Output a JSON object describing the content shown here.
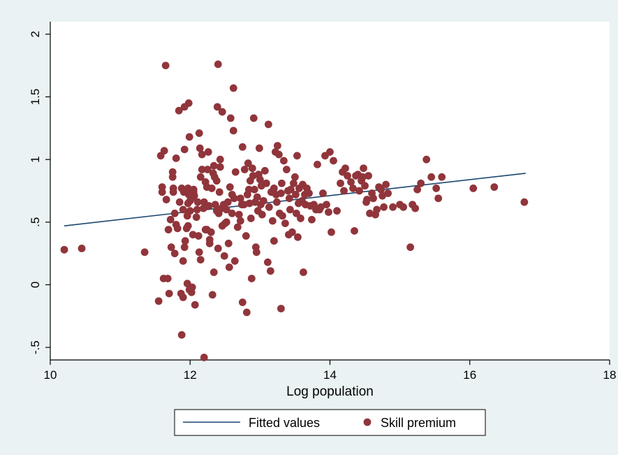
{
  "chart_data": {
    "type": "scatter",
    "xlabel": "Log population",
    "ylabel": "",
    "xlim": [
      10,
      18
    ],
    "ylim": [
      -0.6,
      2.1
    ],
    "xticks": [
      {
        "v": 10,
        "label": "10"
      },
      {
        "v": 12,
        "label": "12"
      },
      {
        "v": 14,
        "label": "14"
      },
      {
        "v": 16,
        "label": "16"
      },
      {
        "v": 18,
        "label": "18"
      }
    ],
    "yticks": [
      {
        "v": -0.5,
        "label": "-.5"
      },
      {
        "v": 0,
        "label": "0"
      },
      {
        "v": 0.5,
        "label": ".5"
      },
      {
        "v": 1,
        "label": "1"
      },
      {
        "v": 1.5,
        "label": "1.5"
      },
      {
        "v": 2,
        "label": "2"
      }
    ],
    "grid": false,
    "legend_position": "bottom",
    "colors": {
      "plot_bg": "#ffffff",
      "outer_bg": "#eaf2f3",
      "points": "#90353b",
      "fit_line": "#1a476f"
    },
    "series": [
      {
        "name": "Fitted values",
        "type": "line",
        "x": [
          10.2,
          16.8
        ],
        "y": [
          0.47,
          0.89
        ]
      },
      {
        "name": "Skill premium",
        "type": "scatter",
        "points": [
          [
            10.2,
            0.28
          ],
          [
            10.45,
            0.29
          ],
          [
            11.35,
            0.26
          ],
          [
            11.55,
            -0.13
          ],
          [
            11.58,
            1.03
          ],
          [
            11.6,
            0.78
          ],
          [
            11.6,
            0.74
          ],
          [
            11.62,
            0.05
          ],
          [
            11.63,
            1.07
          ],
          [
            11.65,
            1.75
          ],
          [
            11.66,
            0.68
          ],
          [
            11.68,
            0.05
          ],
          [
            11.69,
            0.44
          ],
          [
            11.7,
            -0.07
          ],
          [
            11.72,
            0.52
          ],
          [
            11.73,
            0.3
          ],
          [
            11.75,
            0.86
          ],
          [
            11.75,
            0.9
          ],
          [
            11.76,
            0.77
          ],
          [
            11.76,
            0.74
          ],
          [
            11.78,
            0.25
          ],
          [
            11.78,
            0.57
          ],
          [
            11.8,
            1.01
          ],
          [
            11.8,
            0.48
          ],
          [
            11.82,
            0.45
          ],
          [
            11.84,
            1.39
          ],
          [
            11.85,
            0.66
          ],
          [
            11.87,
            -0.07
          ],
          [
            11.88,
            -0.4
          ],
          [
            11.88,
            0.77
          ],
          [
            11.9,
            0.19
          ],
          [
            11.9,
            0.6
          ],
          [
            11.9,
            -0.1
          ],
          [
            11.91,
            0.74
          ],
          [
            11.92,
            0.3
          ],
          [
            11.92,
            1.42
          ],
          [
            11.92,
            1.08
          ],
          [
            11.93,
            0.35
          ],
          [
            11.95,
            0.45
          ],
          [
            11.96,
            0.55
          ],
          [
            11.96,
            0.01
          ],
          [
            11.97,
            0.47
          ],
          [
            11.97,
            0.77
          ],
          [
            11.97,
            0.65
          ],
          [
            11.98,
            1.45
          ],
          [
            11.98,
            0.72
          ],
          [
            11.99,
            1.18
          ],
          [
            11.99,
            -0.04
          ],
          [
            12,
            0.59
          ],
          [
            12,
            0.67
          ],
          [
            12.02,
            0.69
          ],
          [
            12.02,
            -0.06
          ],
          [
            12.03,
            -0.02
          ],
          [
            12.04,
            0.4
          ],
          [
            12.05,
            0.76
          ],
          [
            12.05,
            0.74
          ],
          [
            12.06,
            0.71
          ],
          [
            12.07,
            -0.16
          ],
          [
            12.09,
            0.54
          ],
          [
            12.1,
            0.6
          ],
          [
            12.11,
            0.66
          ],
          [
            12.12,
            0.39
          ],
          [
            12.13,
            1.21
          ],
          [
            12.13,
            0.26
          ],
          [
            12.14,
            1.09
          ],
          [
            12.15,
            0.86
          ],
          [
            12.15,
            0.2
          ],
          [
            12.17,
            1.04
          ],
          [
            12.17,
            0.92
          ],
          [
            12.19,
            0.61
          ],
          [
            12.2,
            0.66
          ],
          [
            12.2,
            -0.58
          ],
          [
            12.22,
            0.82
          ],
          [
            12.22,
            0.44
          ],
          [
            12.24,
            0.78
          ],
          [
            12.24,
            0.44
          ],
          [
            12.25,
            0.92
          ],
          [
            12.26,
            1.06
          ],
          [
            12.27,
            0.63
          ],
          [
            12.28,
            0.33
          ],
          [
            12.28,
            0.36
          ],
          [
            12.3,
            0.42
          ],
          [
            12.31,
            0.77
          ],
          [
            12.32,
            -0.08
          ],
          [
            12.33,
            0.89
          ],
          [
            12.34,
            0.1
          ],
          [
            12.34,
            0.95
          ],
          [
            12.35,
            0.86
          ],
          [
            12.36,
            0.64
          ],
          [
            12.38,
            0.83
          ],
          [
            12.38,
            0.59
          ],
          [
            12.39,
            1.42
          ],
          [
            12.4,
            1.76
          ],
          [
            12.4,
            0.29
          ],
          [
            12.41,
            0.57
          ],
          [
            12.42,
            0.74
          ],
          [
            12.43,
            1.0
          ],
          [
            12.43,
            0.94
          ],
          [
            12.45,
            0.61
          ],
          [
            12.46,
            1.38
          ],
          [
            12.46,
            0.47
          ],
          [
            12.48,
            0.64
          ],
          [
            12.49,
            0.23
          ],
          [
            12.5,
            0.49
          ],
          [
            12.52,
            0.6
          ],
          [
            12.52,
            0.5
          ],
          [
            12.54,
            0.66
          ],
          [
            12.55,
            0.33
          ],
          [
            12.56,
            0.14
          ],
          [
            12.57,
            0.78
          ],
          [
            12.58,
            1.33
          ],
          [
            12.6,
            0.72
          ],
          [
            12.6,
            0.57
          ],
          [
            12.62,
            1.23
          ],
          [
            12.62,
            1.57
          ],
          [
            12.63,
            0.69
          ],
          [
            12.64,
            0.19
          ],
          [
            12.65,
            0.9
          ],
          [
            12.68,
            0.46
          ],
          [
            12.7,
            0.56
          ],
          [
            12.72,
            0.69
          ],
          [
            12.72,
            0.51
          ],
          [
            12.74,
            0.64
          ],
          [
            12.75,
            1.1
          ],
          [
            12.75,
            -0.14
          ],
          [
            12.77,
            0.64
          ],
          [
            12.78,
            0.92
          ],
          [
            12.8,
            0.39
          ],
          [
            12.81,
            -0.22
          ],
          [
            12.82,
            0.72
          ],
          [
            12.83,
            0.97
          ],
          [
            12.84,
            0.76
          ],
          [
            12.85,
            0.65
          ],
          [
            12.86,
            0.83
          ],
          [
            12.87,
            0.53
          ],
          [
            12.88,
            0.05
          ],
          [
            12.89,
            0.93
          ],
          [
            12.9,
            0.87
          ],
          [
            12.91,
            1.33
          ],
          [
            12.92,
            0.76
          ],
          [
            12.93,
            0.66
          ],
          [
            12.94,
            0.3
          ],
          [
            12.95,
            0.26
          ],
          [
            12.96,
            0.7
          ],
          [
            12.97,
            0.59
          ],
          [
            12.98,
            0.88
          ],
          [
            12.99,
            1.09
          ],
          [
            13.0,
            0.84
          ],
          [
            13.01,
            0.64
          ],
          [
            13.02,
            0.79
          ],
          [
            13.03,
            0.56
          ],
          [
            13.05,
            0.67
          ],
          [
            13.07,
            0.91
          ],
          [
            13.09,
            0.81
          ],
          [
            13.11,
            0.18
          ],
          [
            13.12,
            1.28
          ],
          [
            13.13,
            0.62
          ],
          [
            13.15,
            0.11
          ],
          [
            13.16,
            0.74
          ],
          [
            13.18,
            0.51
          ],
          [
            13.2,
            0.77
          ],
          [
            13.2,
            0.35
          ],
          [
            13.22,
            1.06
          ],
          [
            13.23,
            0.72
          ],
          [
            13.24,
            0.66
          ],
          [
            13.25,
            1.11
          ],
          [
            13.27,
            1.04
          ],
          [
            13.28,
            0.57
          ],
          [
            13.3,
            0.73
          ],
          [
            13.3,
            -0.19
          ],
          [
            13.31,
            0.81
          ],
          [
            13.32,
            0.55
          ],
          [
            13.34,
            0.99
          ],
          [
            13.36,
            0.49
          ],
          [
            13.38,
            0.92
          ],
          [
            13.4,
            0.75
          ],
          [
            13.41,
            0.4
          ],
          [
            13.42,
            0.69
          ],
          [
            13.43,
            0.6
          ],
          [
            13.44,
            0.76
          ],
          [
            13.46,
            0.42
          ],
          [
            13.48,
            0.81
          ],
          [
            13.5,
            0.86
          ],
          [
            13.51,
            0.72
          ],
          [
            13.52,
            0.57
          ],
          [
            13.53,
            1.03
          ],
          [
            13.54,
            0.38
          ],
          [
            13.55,
            0.65
          ],
          [
            13.56,
            0.77
          ],
          [
            13.58,
            0.53
          ],
          [
            13.6,
            0.67
          ],
          [
            13.61,
            0.8
          ],
          [
            13.62,
            0.1
          ],
          [
            13.64,
            0.72
          ],
          [
            13.65,
            0.64
          ],
          [
            13.67,
            0.77
          ],
          [
            13.7,
            0.73
          ],
          [
            13.72,
            0.63
          ],
          [
            13.74,
            0.52
          ],
          [
            13.77,
            0.64
          ],
          [
            13.8,
            0.6
          ],
          [
            13.82,
            0.96
          ],
          [
            13.85,
            0.6
          ],
          [
            13.87,
            0.62
          ],
          [
            13.9,
            0.73
          ],
          [
            13.93,
            1.03
          ],
          [
            13.95,
            0.64
          ],
          [
            13.98,
            0.58
          ],
          [
            14.0,
            1.06
          ],
          [
            14.02,
            0.42
          ],
          [
            14.05,
            0.99
          ],
          [
            14.1,
            0.59
          ],
          [
            14.15,
            0.81
          ],
          [
            14.18,
            0.9
          ],
          [
            14.2,
            0.75
          ],
          [
            14.22,
            0.93
          ],
          [
            14.25,
            0.87
          ],
          [
            14.3,
            0.82
          ],
          [
            14.33,
            0.77
          ],
          [
            14.35,
            0.43
          ],
          [
            14.37,
            0.87
          ],
          [
            14.4,
            0.88
          ],
          [
            14.42,
            0.75
          ],
          [
            14.45,
            0.83
          ],
          [
            14.47,
            0.86
          ],
          [
            14.48,
            0.93
          ],
          [
            14.5,
            0.79
          ],
          [
            14.52,
            0.66
          ],
          [
            14.53,
            0.68
          ],
          [
            14.55,
            0.87
          ],
          [
            14.57,
            0.57
          ],
          [
            14.6,
            0.73
          ],
          [
            14.62,
            0.69
          ],
          [
            14.65,
            0.56
          ],
          [
            14.67,
            0.6
          ],
          [
            14.7,
            0.78
          ],
          [
            14.73,
            0.76
          ],
          [
            14.75,
            0.71
          ],
          [
            14.77,
            0.62
          ],
          [
            14.8,
            0.8
          ],
          [
            14.83,
            0.73
          ],
          [
            14.9,
            0.62
          ],
          [
            15.0,
            0.64
          ],
          [
            15.05,
            0.62
          ],
          [
            15.15,
            0.3
          ],
          [
            15.18,
            0.64
          ],
          [
            15.22,
            0.61
          ],
          [
            15.25,
            0.76
          ],
          [
            15.3,
            0.81
          ],
          [
            15.38,
            1.0
          ],
          [
            15.45,
            0.86
          ],
          [
            15.52,
            0.77
          ],
          [
            15.55,
            0.69
          ],
          [
            15.6,
            0.86
          ],
          [
            16.05,
            0.77
          ],
          [
            16.35,
            0.78
          ],
          [
            16.78,
            0.66
          ]
        ]
      }
    ],
    "legend": {
      "entries": [
        {
          "label": "Fitted values",
          "kind": "line"
        },
        {
          "label": "Skill premium",
          "kind": "marker"
        }
      ]
    }
  }
}
